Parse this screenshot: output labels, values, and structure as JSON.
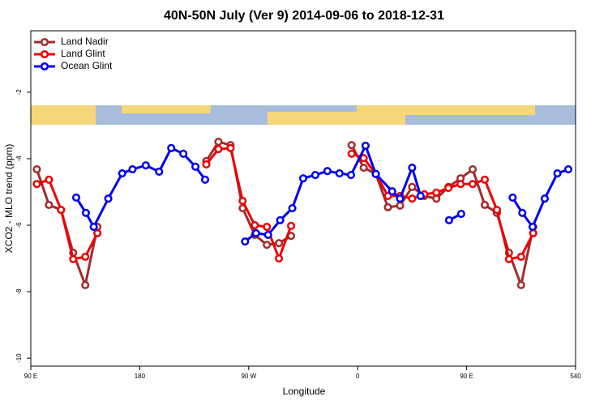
{
  "chart_data": {
    "type": "line",
    "title": "40N-50N July (Ver 9)   2014-09-06 to 2018-12-31",
    "x_label": "Longitude",
    "y_label": "XCO2 - MLO trend (ppm)",
    "xlim": [
      90,
      540
    ],
    "xticks": [
      {
        "value": 90,
        "label": "90 E"
      },
      180,
      {
        "value": 270,
        "label": "90 W"
      },
      {
        "value": 360,
        "label": "0"
      },
      {
        "value": 450,
        "label": "90 E"
      },
      540
    ],
    "ylim": [
      -10.24,
      -0.15
    ],
    "yticks": [
      -10,
      -8,
      -6,
      -4,
      -2
    ],
    "legend": "top-left",
    "series": [
      {
        "name": "Land Nadir",
        "color": "#a52a2a",
        "x": [
          95,
          105,
          115,
          125,
          135,
          145,
          190,
          235,
          245,
          255,
          265,
          275,
          285,
          295,
          305,
          330,
          355,
          365,
          375,
          385,
          395,
          405,
          415,
          425,
          435,
          445,
          455,
          465,
          475,
          485,
          495,
          505
        ],
        "values": [
          -4.32,
          -5.39,
          -5.54,
          -6.83,
          -7.8,
          -6.05,
          null,
          -4.07,
          -3.49,
          -3.59,
          -5.49,
          -6.29,
          -6.59,
          -6.54,
          -6.32,
          null,
          -3.59,
          -4.27,
          -4.46,
          -5.46,
          -5.41,
          -4.85,
          -5.12,
          -5.2,
          -4.85,
          -4.59,
          -4.32,
          -5.39,
          -5.63,
          -6.83,
          -7.8,
          -6.05
        ]
      },
      {
        "name": "Land Glint",
        "color": "#ee0000",
        "x": [
          95,
          105,
          115,
          125,
          135,
          145,
          190,
          235,
          245,
          255,
          265,
          275,
          285,
          295,
          305,
          330,
          355,
          365,
          375,
          385,
          395,
          405,
          415,
          425,
          435,
          445,
          455,
          465,
          475,
          485,
          495,
          505
        ],
        "values": [
          -4.76,
          -4.63,
          -5.54,
          -7.02,
          -6.95,
          -6.24,
          null,
          -4.17,
          -3.71,
          -3.68,
          -5.27,
          -6.0,
          -6.05,
          -7.0,
          -6.02,
          null,
          -3.85,
          -3.98,
          -4.46,
          -5.12,
          -5.12,
          -5.2,
          -5.07,
          -5.02,
          -4.88,
          -4.76,
          -4.76,
          -4.63,
          -5.54,
          -7.02,
          -6.95,
          -6.24
        ]
      },
      {
        "name": "Ocean Glint",
        "color": "#0000ee",
        "x": [
          127.5,
          135.5,
          142,
          154,
          165.5,
          174,
          185,
          196,
          206,
          216,
          226,
          234,
          250,
          267,
          276,
          286,
          296,
          306,
          315,
          325,
          335,
          345,
          354.5,
          366.5,
          375,
          388.5,
          395,
          405,
          412,
          423,
          435.5,
          445.5,
          466,
          488,
          496,
          504.5,
          514.5,
          525,
          534
        ],
        "values": [
          -5.17,
          -5.63,
          -6.05,
          -5.2,
          -4.44,
          -4.32,
          -4.2,
          -4.39,
          -3.68,
          -3.85,
          -4.24,
          -4.63,
          null,
          -6.49,
          -6.24,
          -6.29,
          -5.85,
          -5.49,
          -4.59,
          -4.49,
          -4.37,
          -4.44,
          -4.49,
          -3.61,
          -4.46,
          -4.98,
          -5.2,
          -4.27,
          -5.12,
          null,
          -5.85,
          -5.66,
          null,
          -5.17,
          -5.63,
          -6.05,
          -5.2,
          -4.44,
          -4.32
        ]
      }
    ]
  }
}
